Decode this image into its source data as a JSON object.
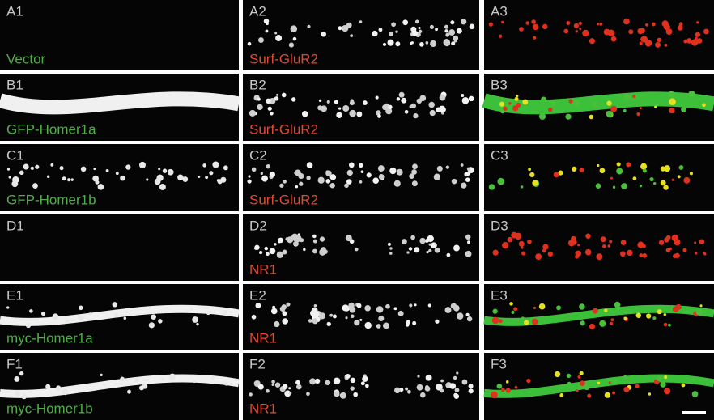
{
  "rows": [
    {
      "panels": [
        "A1",
        "A2",
        "A3"
      ],
      "green_label": "Vector",
      "red_label": "Surf-GluR2"
    },
    {
      "panels": [
        "B1",
        "B2",
        "B3"
      ],
      "green_label": "GFP-Homer1a",
      "red_label": "Surf-GluR2"
    },
    {
      "panels": [
        "C1",
        "C2",
        "C3"
      ],
      "green_label": "GFP-Homer1b",
      "red_label": "Surf-GluR2"
    },
    {
      "panels": [
        "D1",
        "D2",
        "D3"
      ],
      "green_label": "",
      "red_label": "NR1"
    },
    {
      "panels": [
        "E1",
        "E2",
        "E3"
      ],
      "green_label": "myc-Homer1a",
      "red_label": "NR1"
    },
    {
      "panels": [
        "F1",
        "F2",
        "F3"
      ],
      "green_label": "myc-Homer1b",
      "red_label": "NR1"
    }
  ]
}
